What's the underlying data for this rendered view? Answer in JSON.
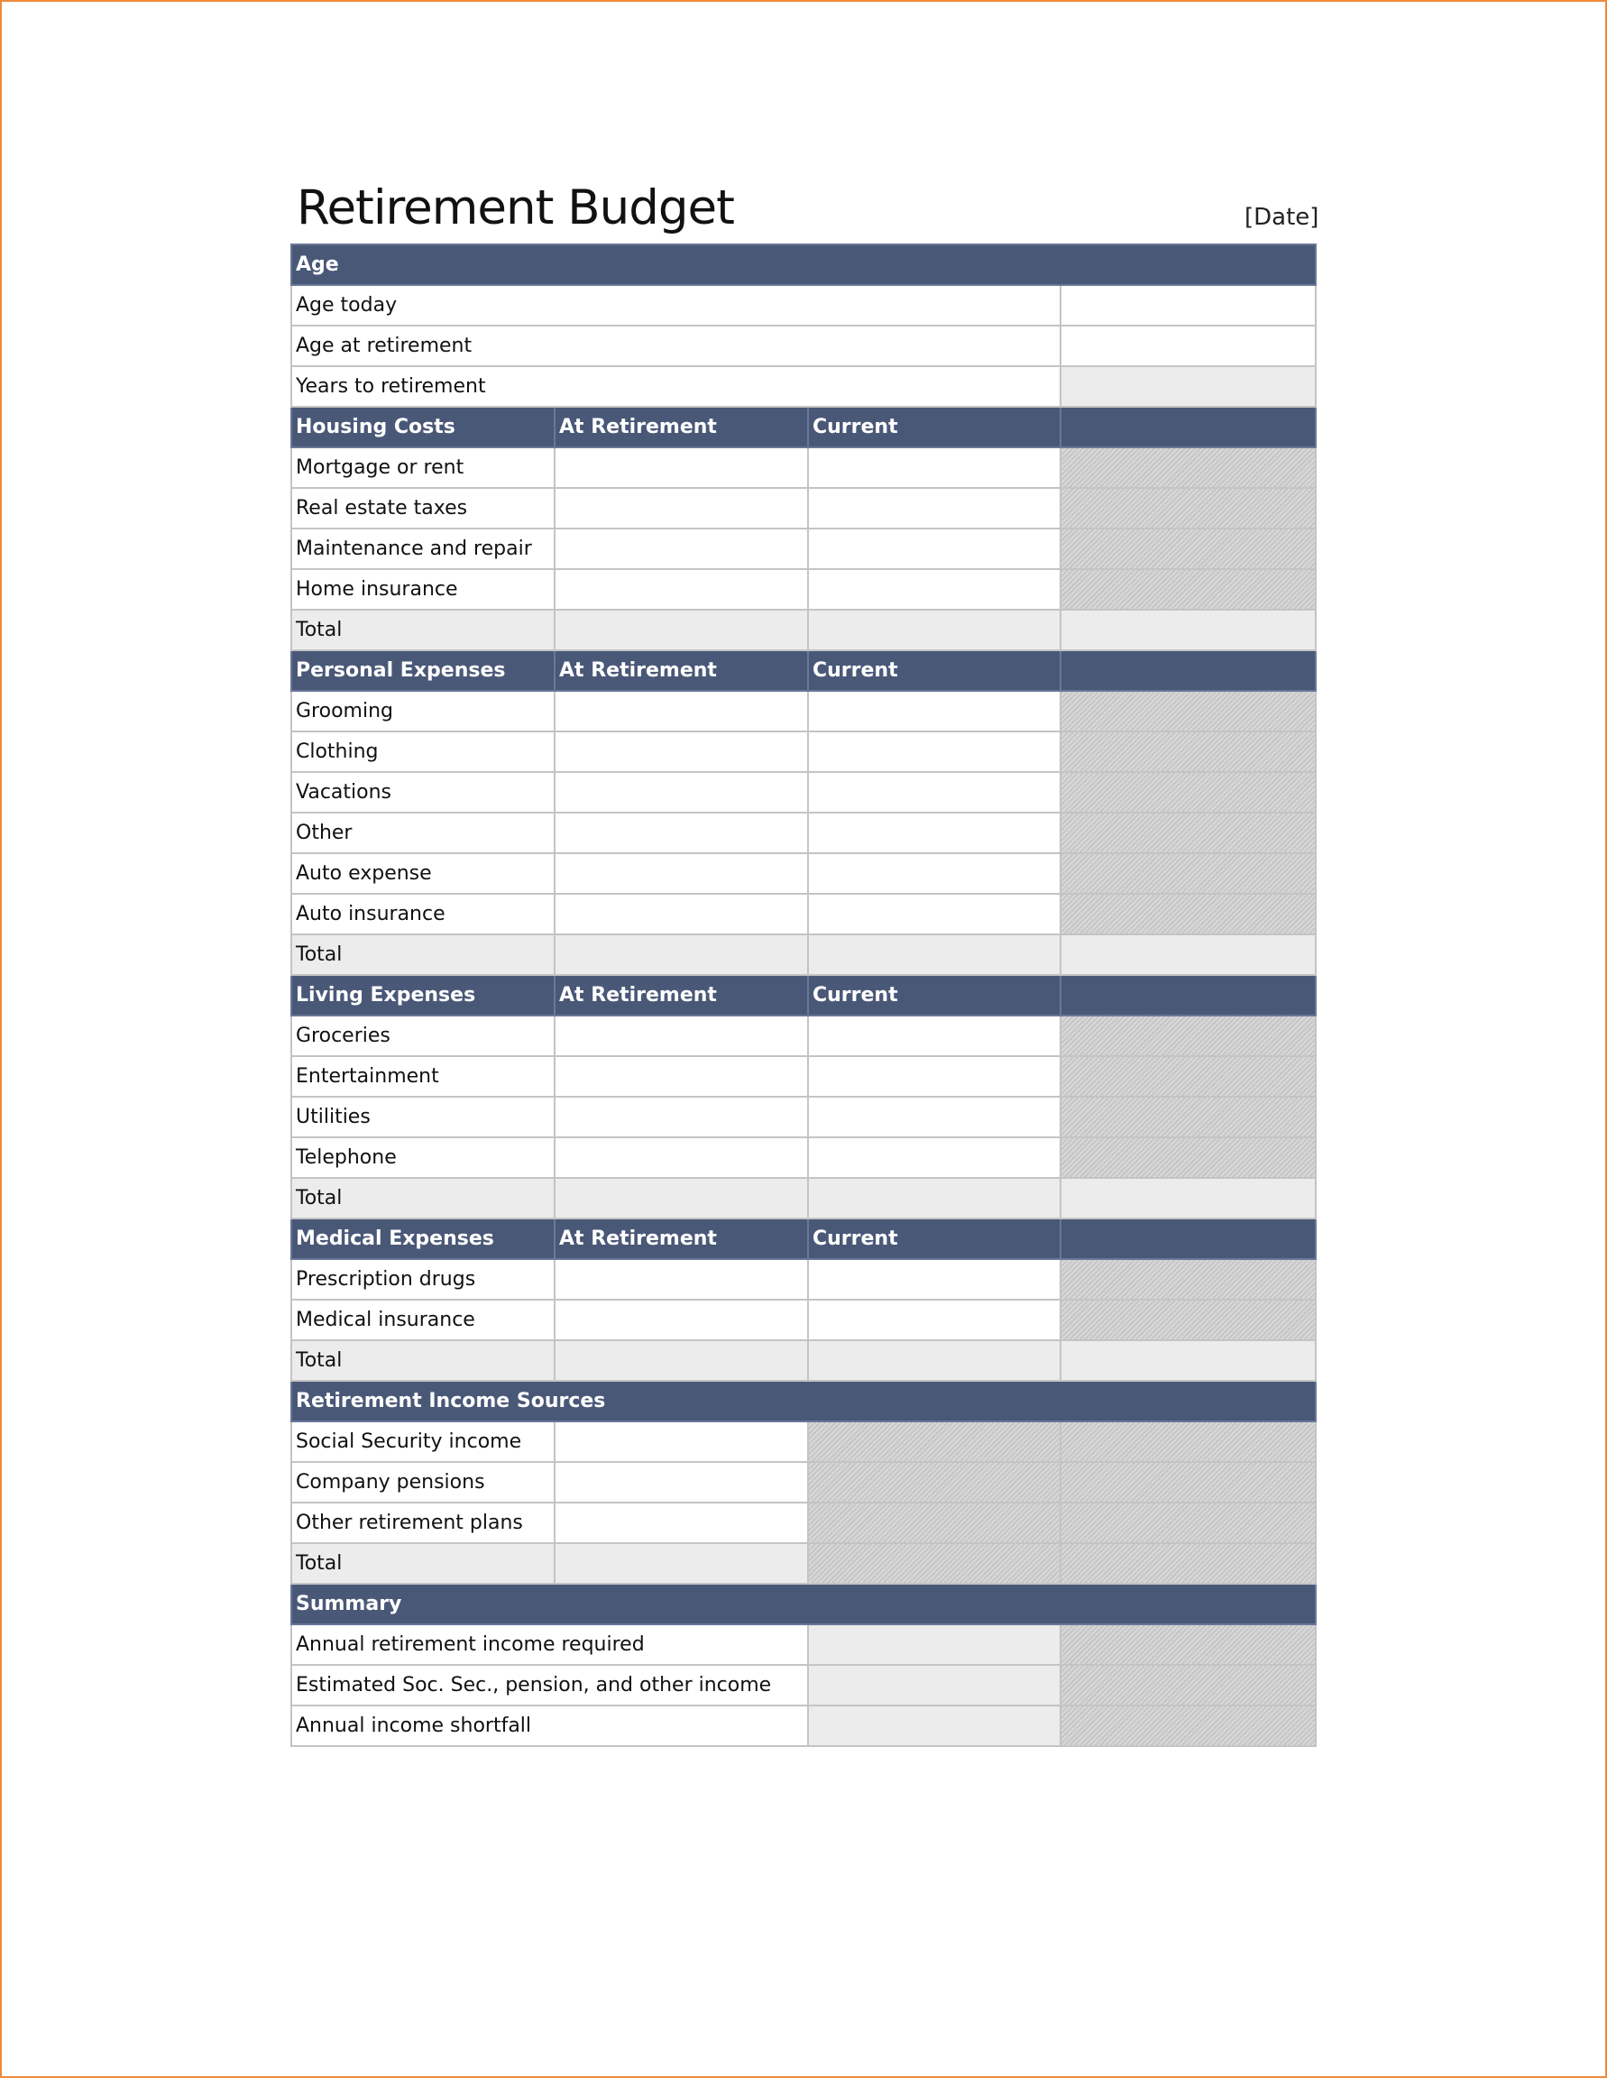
{
  "title": "Retirement Budget",
  "date": "[Date]",
  "colors": {
    "header": "#4a5878",
    "frame": "#f0883a",
    "shaded": "#ececec",
    "hatched": "#cccccc"
  },
  "sections": [
    {
      "kind": "age",
      "header": "Age",
      "rows": [
        "Age today",
        "Age at retirement",
        "Years to retirement"
      ]
    },
    {
      "kind": "expense",
      "header": "Housing Costs",
      "col2": "At Retirement",
      "col3": "Current",
      "rows": [
        "Mortgage or rent",
        "Real estate taxes",
        "Maintenance and repair",
        "Home insurance"
      ],
      "total": "Total"
    },
    {
      "kind": "expense",
      "header": "Personal Expenses",
      "col2": "At Retirement",
      "col3": "Current",
      "rows": [
        "Grooming",
        "Clothing",
        "Vacations",
        "Other",
        "Auto expense",
        "Auto insurance"
      ],
      "total": "Total"
    },
    {
      "kind": "expense",
      "header": "Living Expenses",
      "col2": "At Retirement",
      "col3": "Current",
      "rows": [
        "Groceries",
        "Entertainment",
        "Utilities",
        "Telephone"
      ],
      "total": "Total"
    },
    {
      "kind": "expense",
      "header": "Medical Expenses",
      "col2": "At Retirement",
      "col3": "Current",
      "rows": [
        "Prescription drugs",
        "Medical insurance"
      ],
      "total": "Total"
    },
    {
      "kind": "income",
      "header": "Retirement Income Sources",
      "rows": [
        "Social Security income",
        "Company pensions",
        "Other retirement plans"
      ],
      "total": "Total"
    },
    {
      "kind": "summary",
      "header": "Summary",
      "rows": [
        "Annual retirement income required",
        "Estimated Soc. Sec., pension, and other income",
        "Annual income shortfall"
      ]
    }
  ]
}
